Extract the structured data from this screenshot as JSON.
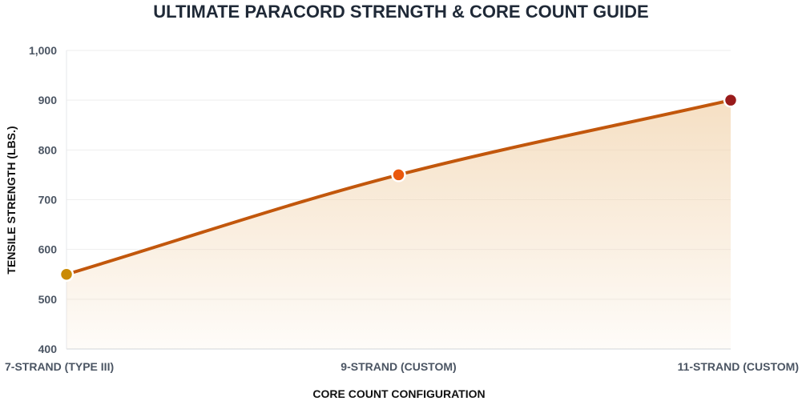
{
  "chart_data": {
    "type": "area",
    "title": "ULTIMATE PARACORD STRENGTH & CORE COUNT GUIDE",
    "xlabel": "CORE COUNT CONFIGURATION",
    "ylabel": "TENSILE STRENGTH (LBS.)",
    "categories": [
      "7-STRAND (TYPE III)",
      "9-STRAND (CUSTOM)",
      "11-STRAND (CUSTOM)"
    ],
    "values": [
      550,
      750,
      900
    ],
    "point_colors": [
      "#ca8a04",
      "#ea580c",
      "#991b1b"
    ],
    "line_color": "#c2570c",
    "fill_color": "#f5deC0",
    "ylim": [
      400,
      1000
    ],
    "yticks": [
      400,
      500,
      600,
      700,
      800,
      900,
      1000
    ],
    "ytick_labels": [
      "400",
      "500",
      "600",
      "700",
      "800",
      "900",
      "1,000"
    ],
    "grid": true,
    "smooth": true
  }
}
